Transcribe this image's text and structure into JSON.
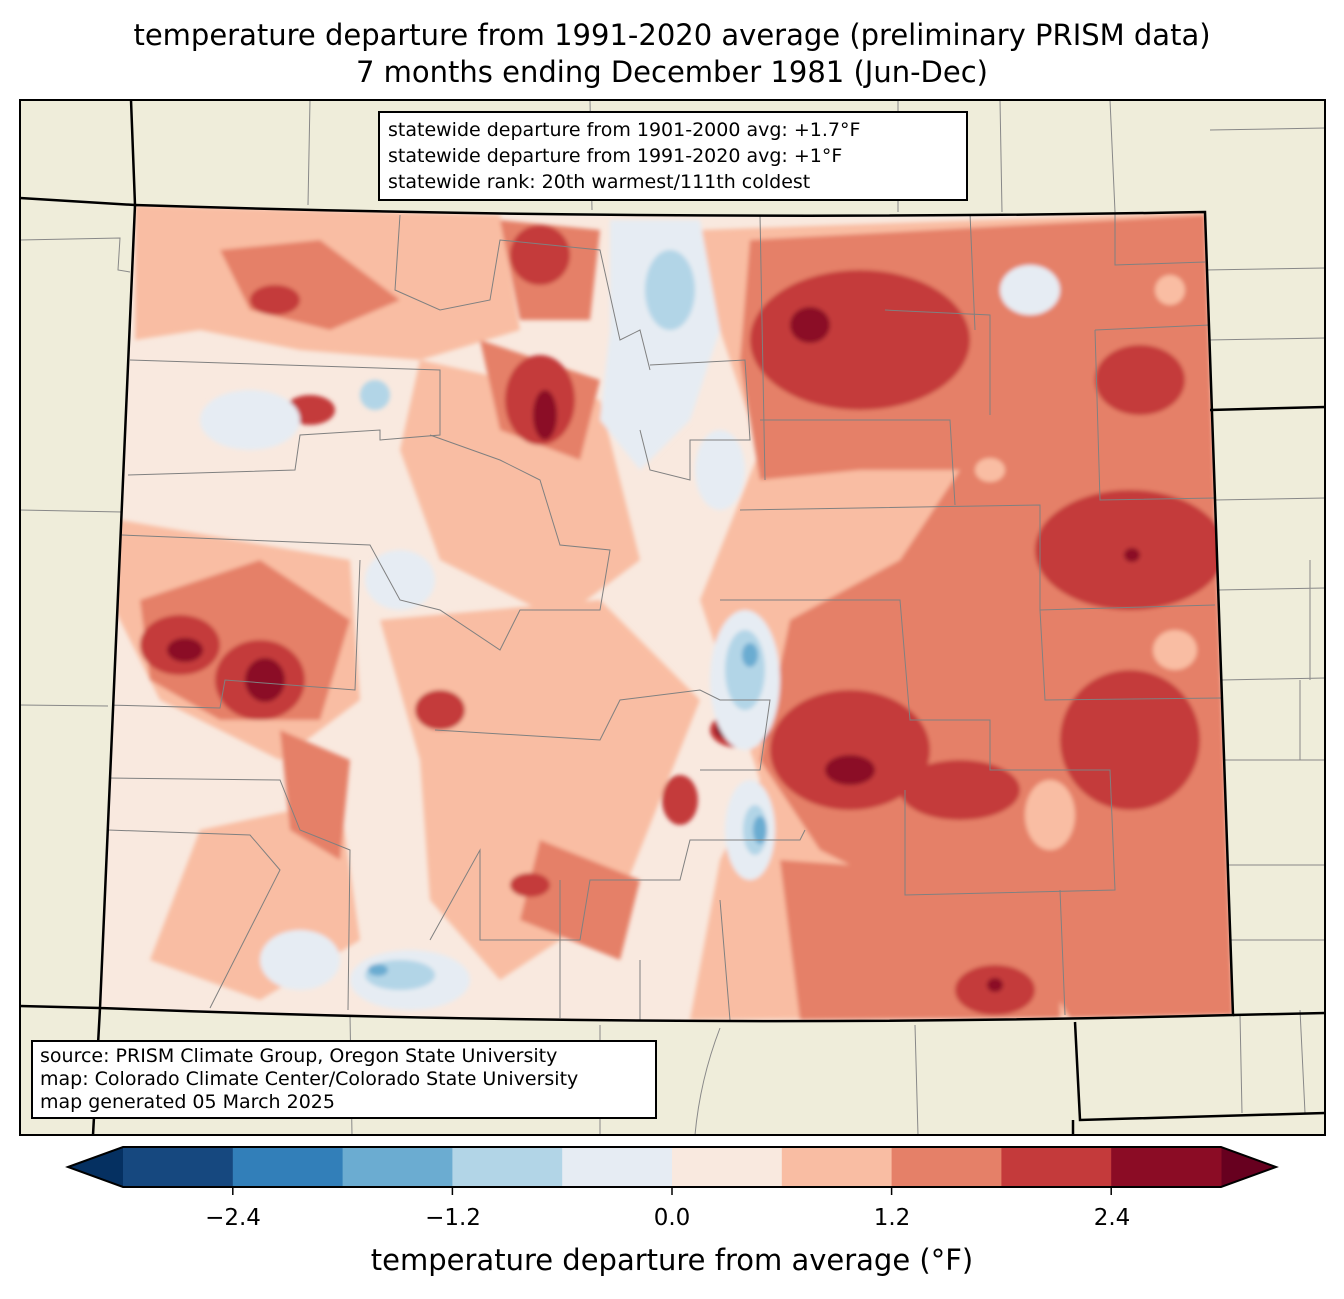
{
  "title": {
    "line1": "temperature departure from 1991-2020 average (preliminary PRISM data)",
    "line2": "7 months ending December 1981 (Jun-Dec)"
  },
  "stats": {
    "line1": "statewide departure from 1901-2000 avg: +1.7°F",
    "line2": "statewide departure from 1991-2020 avg: +1°F",
    "line3": "statewide rank: 20th warmest/111th coldest"
  },
  "source": {
    "line1": "source: PRISM Climate Group, Oregon State University",
    "line2": "map: Colorado Climate Center/Colorado State University",
    "line3": "map generated 05 March 2025"
  },
  "colorbar": {
    "label": "temperature departure from average (°F)",
    "ticks": [
      "−2.4",
      "−1.2",
      "0.0",
      "1.2",
      "2.4"
    ],
    "tick_values": [
      -2.4,
      -1.2,
      0.0,
      1.2,
      2.4
    ],
    "levels": [
      -3.0,
      -2.4,
      -1.8,
      -1.2,
      -0.6,
      0.0,
      0.6,
      1.2,
      1.8,
      2.4,
      3.0
    ],
    "colors": [
      "#16487f",
      "#327fb9",
      "#6bacd1",
      "#b2d5e7",
      "#e6ecf3",
      "#f9e9df",
      "#f9bda3",
      "#e58068",
      "#c43a3b",
      "#8b0c25"
    ],
    "under_color": "#053061",
    "over_color": "#67001f"
  },
  "map": {
    "land_color": "#efedda",
    "base_fill": "#f9e9df"
  }
}
